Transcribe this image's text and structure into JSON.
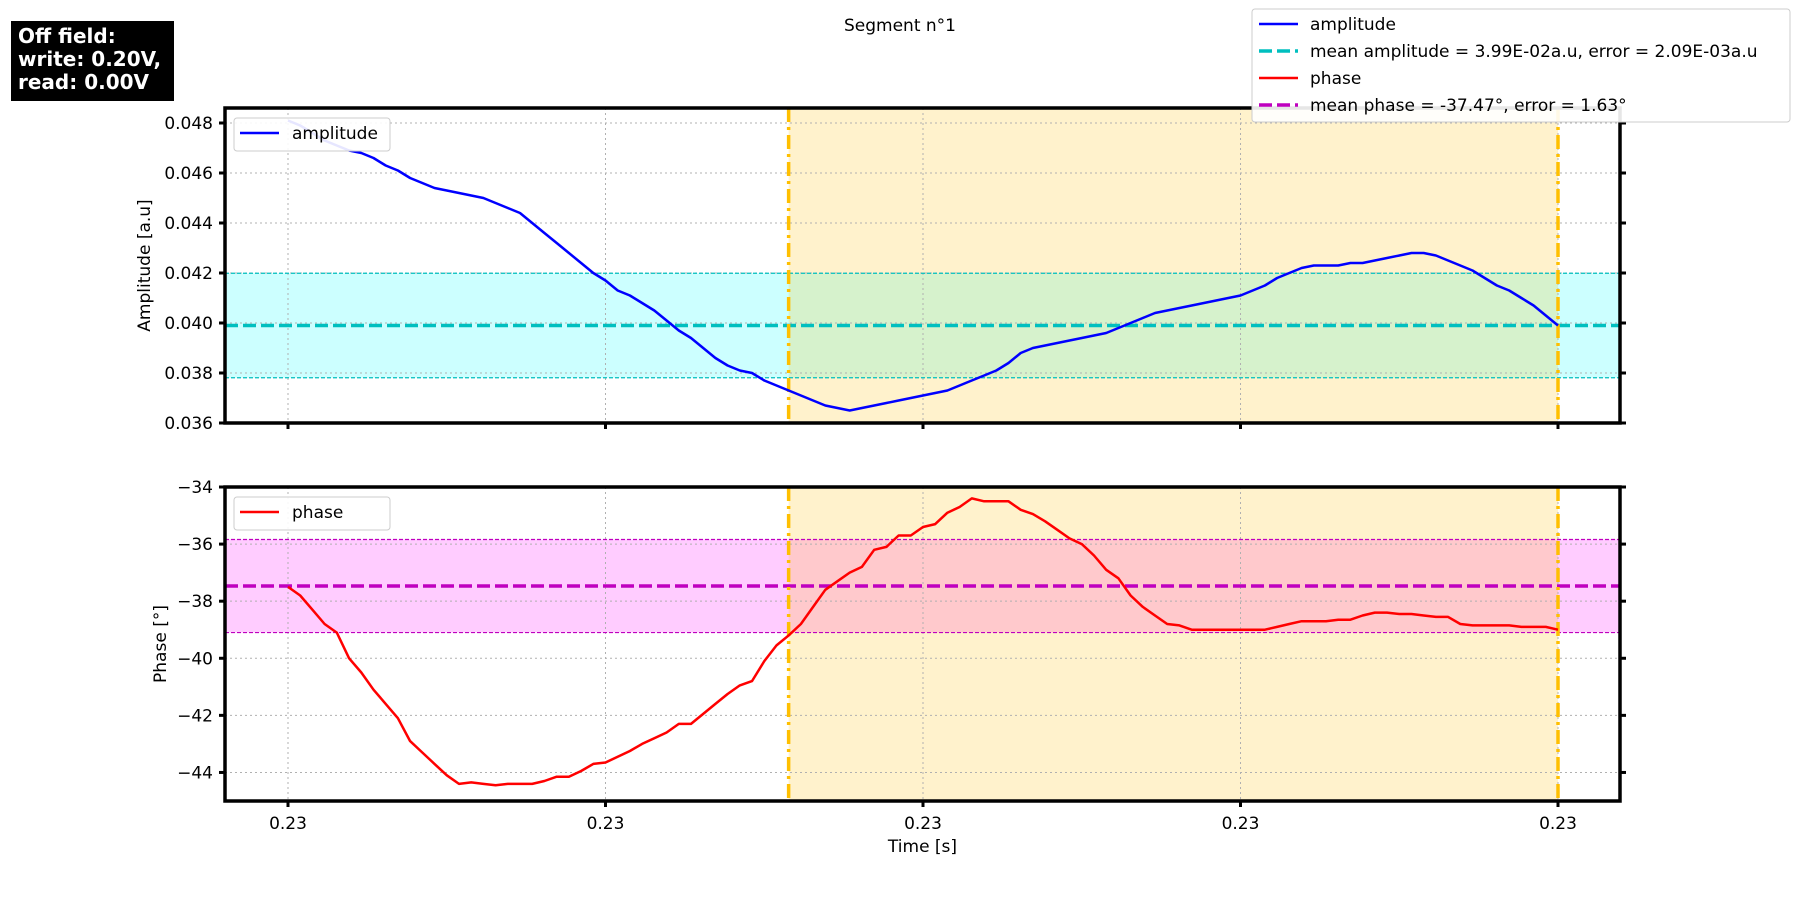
{
  "title": "Segment n°1",
  "info_box": [
    "Off field:",
    "write: 0.20V,",
    "read: 0.00V"
  ],
  "legend_main": [
    {
      "label": "amplitude",
      "color": "#0000ff",
      "style": "solid"
    },
    {
      "label": "mean amplitude = 3.99E-02a.u, error = 2.09E-03a.u",
      "color": "#00bfbf",
      "style": "dashed"
    },
    {
      "label": "phase",
      "color": "#ff0000",
      "style": "solid"
    },
    {
      "label": "mean phase = -37.47°, error = 1.63°",
      "color": "#bf00bf",
      "style": "dashed"
    }
  ],
  "chart_data": [
    {
      "type": "line",
      "name": "amplitude-panel",
      "ylabel": "Amplitude [a.u]",
      "xlabel": "",
      "ylim": [
        0.036,
        0.0486
      ],
      "y_ticks": [
        0.036,
        0.038,
        0.04,
        0.042,
        0.044,
        0.046,
        0.048
      ],
      "y_tick_labels": [
        "0.036",
        "0.038",
        "0.040",
        "0.042",
        "0.044",
        "0.046",
        "0.048"
      ],
      "x_tick_labels": [
        "0.23",
        "0.23",
        "0.23",
        "0.23",
        "0.23"
      ],
      "grid": true,
      "legend": "upper-left",
      "legend_label": "amplitude",
      "series_color": "#0000ff",
      "mean": 0.0399,
      "error": 0.00209,
      "mean_color": "#00bfbf",
      "band_color": "#ccffff",
      "series": [
        {
          "name": "amplitude",
          "values": [
            0.0481,
            0.0479,
            0.0476,
            0.0473,
            0.0471,
            0.0469,
            0.0468,
            0.0466,
            0.0463,
            0.0461,
            0.0458,
            0.0456,
            0.0454,
            0.0453,
            0.0452,
            0.0451,
            0.045,
            0.0448,
            0.0446,
            0.0444,
            0.044,
            0.0436,
            0.0432,
            0.0428,
            0.0424,
            0.042,
            0.0417,
            0.0413,
            0.0411,
            0.0408,
            0.0405,
            0.0401,
            0.0397,
            0.0394,
            0.039,
            0.0386,
            0.0383,
            0.0381,
            0.038,
            0.0377,
            0.0375,
            0.0373,
            0.0371,
            0.0369,
            0.0367,
            0.0366,
            0.0365,
            0.0366,
            0.0367,
            0.0368,
            0.0369,
            0.037,
            0.0371,
            0.0372,
            0.0373,
            0.0375,
            0.0377,
            0.0379,
            0.0381,
            0.0384,
            0.0388,
            0.039,
            0.0391,
            0.0392,
            0.0393,
            0.0394,
            0.0395,
            0.0396,
            0.0398,
            0.04,
            0.0402,
            0.0404,
            0.0405,
            0.0406,
            0.0407,
            0.0408,
            0.0409,
            0.041,
            0.0411,
            0.0413,
            0.0415,
            0.0418,
            0.042,
            0.0422,
            0.0423,
            0.0423,
            0.0423,
            0.0424,
            0.0424,
            0.0425,
            0.0426,
            0.0427,
            0.0428,
            0.0428,
            0.0427,
            0.0425,
            0.0423,
            0.0421,
            0.0418,
            0.0415,
            0.0413,
            0.041,
            0.0407,
            0.0403,
            0.0399
          ]
        }
      ]
    },
    {
      "type": "line",
      "name": "phase-panel",
      "ylabel": "Phase [°]",
      "xlabel": "Time [s]",
      "ylim": [
        -45,
        -34
      ],
      "y_ticks": [
        -44,
        -42,
        -40,
        -38,
        -36,
        -34
      ],
      "y_tick_labels": [
        "−44",
        "−42",
        "−40",
        "−38",
        "−36",
        "−34"
      ],
      "x_tick_labels": [
        "0.23",
        "0.23",
        "0.23",
        "0.23",
        "0.23"
      ],
      "grid": true,
      "legend": "upper-left",
      "legend_label": "phase",
      "series_color": "#ff0000",
      "mean": -37.47,
      "error": 1.63,
      "mean_color": "#bf00bf",
      "band_color": "#ffccff",
      "series": [
        {
          "name": "phase",
          "values": [
            -37.5,
            -37.8,
            -38.3,
            -38.8,
            -39.1,
            -40.0,
            -40.5,
            -41.1,
            -41.6,
            -42.1,
            -42.9,
            -43.3,
            -43.7,
            -44.1,
            -44.4,
            -44.35,
            -44.4,
            -44.45,
            -44.4,
            -44.4,
            -44.4,
            -44.3,
            -44.15,
            -44.15,
            -43.95,
            -43.7,
            -43.65,
            -43.45,
            -43.25,
            -43.0,
            -42.8,
            -42.6,
            -42.3,
            -42.3,
            -41.95,
            -41.6,
            -41.25,
            -40.95,
            -40.8,
            -40.1,
            -39.55,
            -39.2,
            -38.8,
            -38.2,
            -37.6,
            -37.3,
            -37.0,
            -36.8,
            -36.2,
            -36.1,
            -35.7,
            -35.7,
            -35.4,
            -35.3,
            -34.9,
            -34.7,
            -34.4,
            -34.5,
            -34.5,
            -34.5,
            -34.8,
            -34.95,
            -35.2,
            -35.5,
            -35.8,
            -36.0,
            -36.4,
            -36.9,
            -37.2,
            -37.8,
            -38.2,
            -38.5,
            -38.8,
            -38.85,
            -39.0,
            -39.0,
            -39.0,
            -39.0,
            -39.0,
            -39.0,
            -39.0,
            -38.9,
            -38.8,
            -38.7,
            -38.7,
            -38.7,
            -38.65,
            -38.65,
            -38.5,
            -38.4,
            -38.4,
            -38.45,
            -38.45,
            -38.5,
            -38.55,
            -38.55,
            -38.8,
            -38.85,
            -38.85,
            -38.85,
            -38.85,
            -38.9,
            -38.9,
            -38.9,
            -39.0
          ]
        }
      ]
    }
  ],
  "segment_shade": {
    "color": "#fff0cc",
    "line_color": "#ffbf00",
    "start_fraction": 0.3942,
    "end_fraction": 1.0
  }
}
